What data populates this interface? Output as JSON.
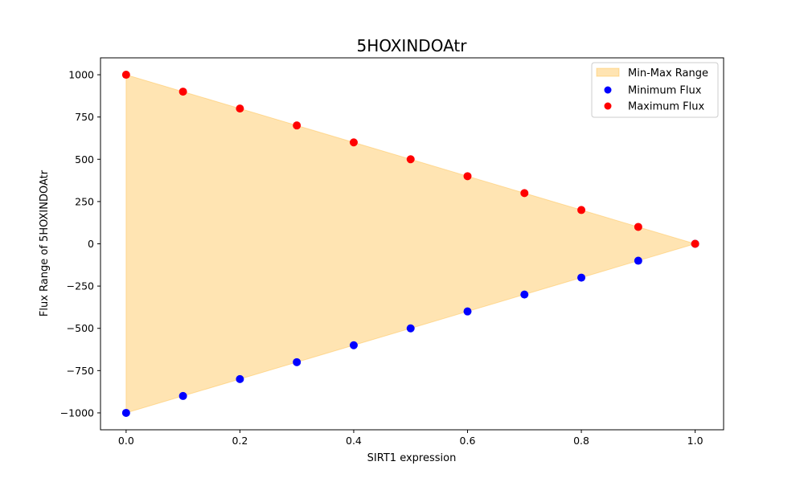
{
  "chart_data": {
    "type": "scatter",
    "title": "5HOXINDOAtr",
    "xlabel": "SIRT1 expression",
    "ylabel": "Flux Range of 5HOXINDOAtr",
    "xlim": [
      -0.045,
      1.05
    ],
    "ylim": [
      -1100,
      1100
    ],
    "xticks": [
      0.0,
      0.2,
      0.4,
      0.6,
      0.8,
      1.0
    ],
    "xtick_labels": [
      "0.0",
      "0.2",
      "0.4",
      "0.6",
      "0.8",
      "1.0"
    ],
    "yticks": [
      -1000,
      -750,
      -500,
      -250,
      0,
      250,
      500,
      750,
      1000
    ],
    "ytick_labels": [
      "−1000",
      "−750",
      "−500",
      "−250",
      "0",
      "250",
      "500",
      "750",
      "1000"
    ],
    "x": [
      0.0,
      0.1,
      0.2,
      0.3,
      0.4,
      0.5,
      0.6,
      0.7,
      0.8,
      0.9,
      1.0
    ],
    "grid": false,
    "legend_position": "top-right",
    "fill": {
      "name": "Min-Max Range",
      "color": "#ffa500",
      "opacity": 0.3
    },
    "series": [
      {
        "name": "Minimum Flux",
        "color": "#0000ff",
        "values": [
          -1000,
          -900,
          -800,
          -700,
          -600,
          -500,
          -400,
          -300,
          -200,
          -100,
          0
        ]
      },
      {
        "name": "Maximum Flux",
        "color": "#ff0000",
        "values": [
          1000,
          900,
          800,
          700,
          600,
          500,
          400,
          300,
          200,
          100,
          0
        ]
      }
    ]
  }
}
